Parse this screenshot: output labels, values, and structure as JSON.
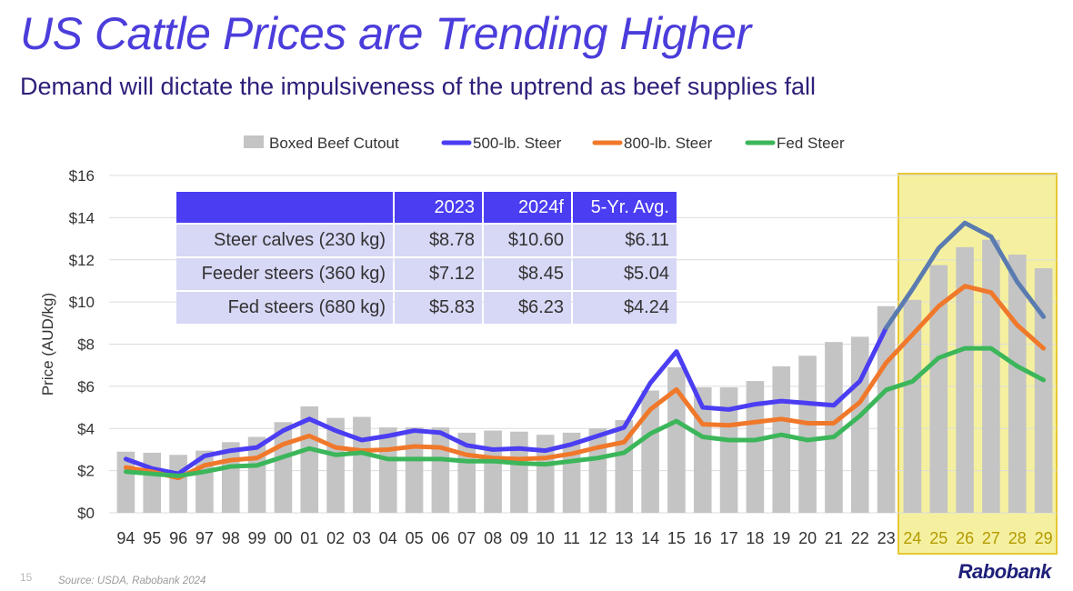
{
  "header": {
    "title": "US Cattle Prices are Trending Higher",
    "subtitle": "Demand will dictate the impulsiveness of the uptrend as beef supplies fall"
  },
  "footer": {
    "page_number": "15",
    "source": "Source: USDA, Rabobank 2024",
    "logo_text": "Rabobank"
  },
  "colors": {
    "bars": "#c4c4c4",
    "steer_500": "#4b3df2",
    "steer_800": "#f0782a",
    "fed_steer": "#3cb65a",
    "forecast_500": "#5a7bb0",
    "forecast_highlight": "#f5f0a0",
    "highlight_border": "#e6c832"
  },
  "table": {
    "headers": [
      "",
      "2023",
      "2024f",
      "5-Yr. Avg."
    ],
    "rows": [
      {
        "label": "Steer calves (230 kg)",
        "values": [
          "$8.78",
          "$10.60",
          "$6.11"
        ]
      },
      {
        "label": "Feeder steers (360 kg)",
        "values": [
          "$7.12",
          "$8.45",
          "$5.04"
        ]
      },
      {
        "label": "Fed steers (680 kg)",
        "values": [
          "$5.83",
          "$6.23",
          "$4.24"
        ]
      }
    ]
  },
  "chart_data": {
    "type": "bar",
    "title": "",
    "xlabel": "",
    "ylabel": "Price (AUD/kg)",
    "ylim": [
      0,
      16
    ],
    "yticks": [
      0,
      2,
      4,
      6,
      8,
      10,
      12,
      14,
      16
    ],
    "ytick_labels": [
      "$0",
      "$2",
      "$4",
      "$6",
      "$8",
      "$10",
      "$12",
      "$14",
      "$16"
    ],
    "grid": true,
    "legend_position": "top-center",
    "categories": [
      "94",
      "95",
      "96",
      "97",
      "98",
      "99",
      "00",
      "01",
      "02",
      "03",
      "04",
      "05",
      "06",
      "07",
      "08",
      "09",
      "10",
      "11",
      "12",
      "13",
      "14",
      "15",
      "16",
      "17",
      "18",
      "19",
      "20",
      "21",
      "22",
      "23",
      "24",
      "25",
      "26",
      "27",
      "28",
      "29"
    ],
    "forecast_categories": [
      "24",
      "25",
      "26",
      "27",
      "28",
      "29"
    ],
    "series": [
      {
        "name": "Boxed Beef Cutout",
        "type": "bar",
        "values": [
          2.9,
          2.85,
          2.75,
          2.95,
          3.35,
          3.6,
          4.3,
          5.05,
          4.5,
          4.55,
          4.05,
          4.05,
          4.05,
          3.8,
          3.9,
          3.85,
          3.7,
          3.8,
          4.0,
          4.4,
          5.8,
          6.9,
          5.95,
          5.95,
          6.25,
          6.95,
          7.45,
          8.1,
          8.35,
          9.8,
          10.1,
          11.75,
          12.6,
          12.95,
          12.25,
          11.6
        ]
      },
      {
        "name": "500-lb. Steer",
        "type": "line",
        "values": [
          2.55,
          2.1,
          1.85,
          2.7,
          2.95,
          3.1,
          3.9,
          4.45,
          3.9,
          3.45,
          3.65,
          3.9,
          3.8,
          3.2,
          3.0,
          3.05,
          2.95,
          3.25,
          3.65,
          4.05,
          6.15,
          7.65,
          5.0,
          4.9,
          5.15,
          5.3,
          5.2,
          5.1,
          6.25,
          8.78,
          10.6,
          12.55,
          13.75,
          13.1,
          10.95,
          9.3
        ]
      },
      {
        "name": "800-lb. Steer",
        "type": "line",
        "values": [
          2.15,
          1.95,
          1.65,
          2.25,
          2.5,
          2.6,
          3.25,
          3.65,
          3.1,
          2.95,
          3.0,
          3.15,
          3.1,
          2.75,
          2.6,
          2.55,
          2.6,
          2.8,
          3.1,
          3.35,
          4.9,
          5.85,
          4.2,
          4.15,
          4.3,
          4.45,
          4.25,
          4.25,
          5.25,
          7.12,
          8.45,
          9.8,
          10.75,
          10.45,
          8.9,
          7.8
        ]
      },
      {
        "name": "Fed Steer",
        "type": "line",
        "values": [
          1.95,
          1.85,
          1.75,
          1.95,
          2.2,
          2.25,
          2.65,
          3.05,
          2.75,
          2.85,
          2.55,
          2.55,
          2.55,
          2.45,
          2.45,
          2.35,
          2.3,
          2.45,
          2.6,
          2.85,
          3.75,
          4.35,
          3.6,
          3.45,
          3.45,
          3.7,
          3.45,
          3.6,
          4.6,
          5.83,
          6.23,
          7.35,
          7.8,
          7.8,
          6.95,
          6.3
        ]
      }
    ]
  }
}
